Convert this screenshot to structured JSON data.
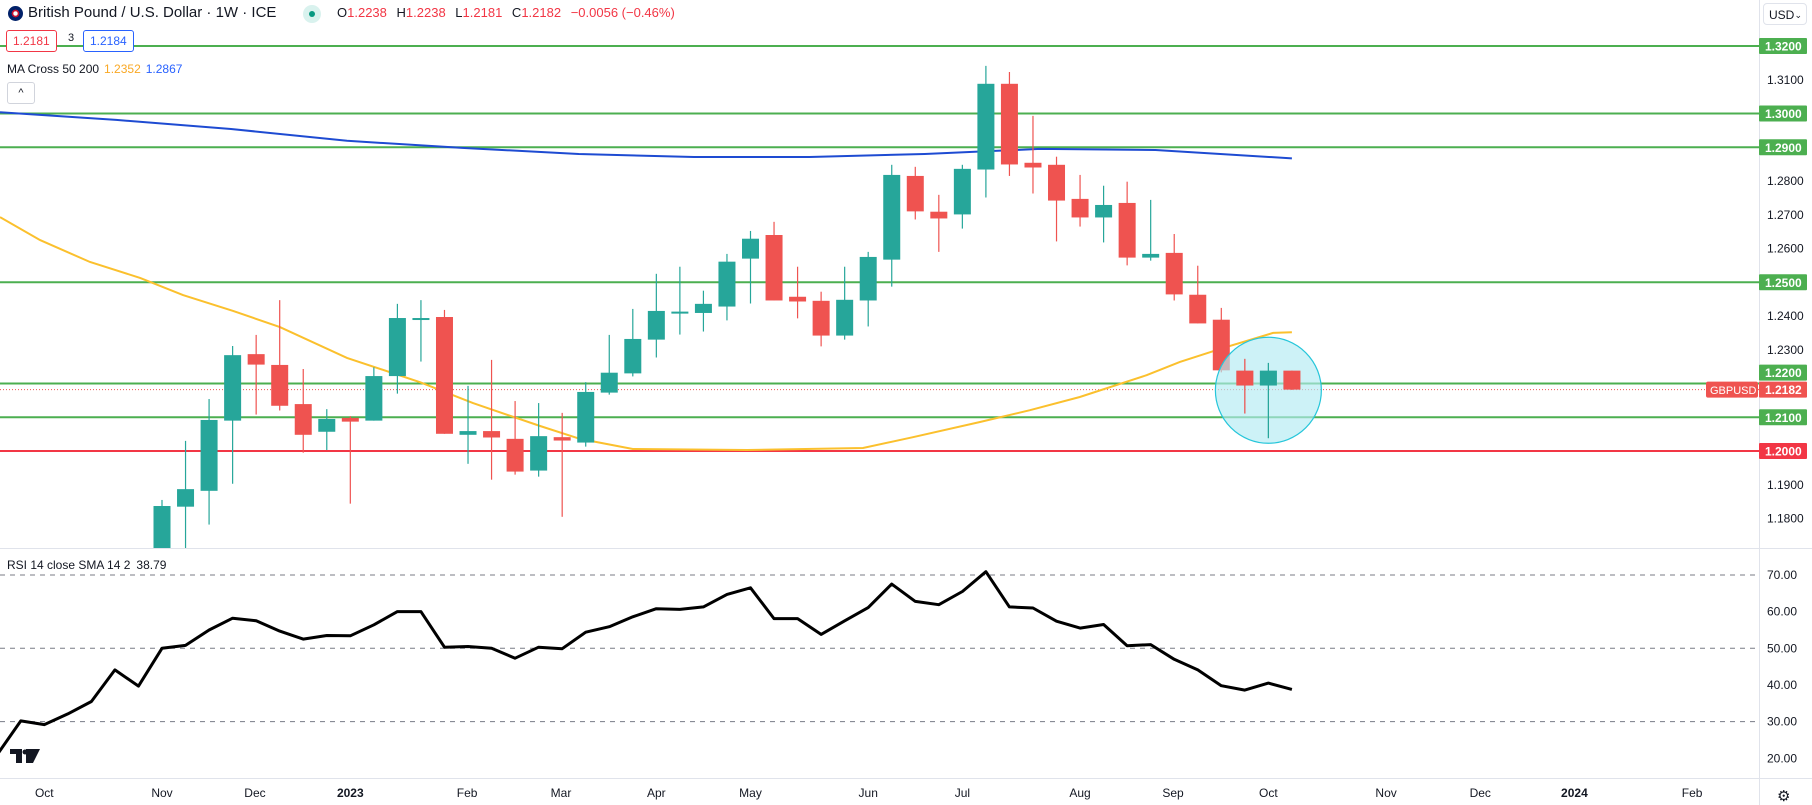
{
  "header": {
    "title": "British Pound / U.S. Dollar · 1W · ICE",
    "o_label": "O",
    "o": "1.2238",
    "h_label": "H",
    "h": "1.2238",
    "l_label": "L",
    "l": "1.2181",
    "c_label": "C",
    "c": "1.2182",
    "change": "−0.0056 (−0.46%)",
    "sell_price": "1.2181",
    "spread": "3",
    "buy_price": "1.2184",
    "collapse_icon": "^"
  },
  "indicators": {
    "ma_label": "MA Cross 50 200",
    "ma50_value": "1.2352",
    "ma200_value": "1.2867",
    "rsi_label": "RSI 14 close SMA 14 2",
    "rsi_value": "38.79"
  },
  "currency_button": {
    "label": "USD",
    "chevron": "⌄"
  },
  "settings_icon": "⚙",
  "symbol_tag": "GBPUSD",
  "current_price": {
    "value": 1.2182,
    "label": "1.2182"
  },
  "colors": {
    "up": "#26a69a",
    "down": "#ef5350",
    "level_green": "#4caf50",
    "level_red": "#f23645",
    "ma50": "#fbc02d",
    "ma200": "#1e4bd2",
    "rsi": "#000000",
    "circle_fill": "#b2ebf2",
    "circle_stroke": "#26c6da"
  },
  "price_axis": {
    "ticks": [
      {
        "value": 1.31,
        "label": "1.3100"
      },
      {
        "value": 1.28,
        "label": "1.2800"
      },
      {
        "value": 1.27,
        "label": "1.2700"
      },
      {
        "value": 1.26,
        "label": "1.2600"
      },
      {
        "value": 1.24,
        "label": "1.2400"
      },
      {
        "value": 1.23,
        "label": "1.2300"
      },
      {
        "value": 1.19,
        "label": "1.1900"
      },
      {
        "value": 1.18,
        "label": "1.1800"
      }
    ],
    "levels": [
      {
        "value": 1.32,
        "label": "1.3200",
        "color": "#4caf50"
      },
      {
        "value": 1.3,
        "label": "1.3000",
        "color": "#4caf50"
      },
      {
        "value": 1.29,
        "label": "1.2900",
        "color": "#4caf50"
      },
      {
        "value": 1.25,
        "label": "1.2500",
        "color": "#4caf50"
      },
      {
        "value": 1.22,
        "label": "1.2200",
        "color": "#4caf50"
      },
      {
        "value": 1.21,
        "label": "1.2100",
        "color": "#4caf50"
      },
      {
        "value": 1.2,
        "label": "1.2000",
        "color": "#f23645"
      }
    ]
  },
  "rsi_axis": {
    "ticks": [
      {
        "value": 70,
        "label": "70.00",
        "dashed": true
      },
      {
        "value": 60,
        "label": "60.00",
        "dashed": false
      },
      {
        "value": 50,
        "label": "50.00",
        "dashed": true
      },
      {
        "value": 40,
        "label": "40.00",
        "dashed": false
      },
      {
        "value": 30,
        "label": "30.00",
        "dashed": true
      },
      {
        "value": 20,
        "label": "20.00",
        "dashed": false
      }
    ]
  },
  "time_axis": [
    {
      "week": -5,
      "label": "Oct",
      "bold": false
    },
    {
      "week": 0,
      "label": "Nov",
      "bold": false
    },
    {
      "week": 3.95,
      "label": "Dec",
      "bold": false
    },
    {
      "week": 8,
      "label": "2023",
      "bold": true
    },
    {
      "week": 12.96,
      "label": "Feb",
      "bold": false
    },
    {
      "week": 16.95,
      "label": "Mar",
      "bold": false
    },
    {
      "week": 21,
      "label": "Apr",
      "bold": false
    },
    {
      "week": 25,
      "label": "May",
      "bold": false
    },
    {
      "week": 30,
      "label": "Jun",
      "bold": false
    },
    {
      "week": 34,
      "label": "Jul",
      "bold": false
    },
    {
      "week": 39,
      "label": "Aug",
      "bold": false
    },
    {
      "week": 42.95,
      "label": "Sep",
      "bold": false
    },
    {
      "week": 47,
      "label": "Oct",
      "bold": false
    },
    {
      "week": 52,
      "label": "Nov",
      "bold": false
    },
    {
      "week": 56,
      "label": "Dec",
      "bold": false
    },
    {
      "week": 60,
      "label": "2024",
      "bold": true
    },
    {
      "week": 65,
      "label": "Feb",
      "bold": false
    }
  ],
  "chart_data": {
    "type": "candlestick",
    "title": "British Pound / U.S. Dollar · 1W · ICE",
    "ohlc_fields": [
      "open",
      "high",
      "low",
      "close"
    ],
    "candles": [
      [
        1.17,
        1.1855,
        1.165,
        1.1837
      ],
      [
        1.1835,
        1.203,
        1.171,
        1.1887
      ],
      [
        1.1882,
        1.2154,
        1.1782,
        1.2092
      ],
      [
        1.209,
        1.2311,
        1.1903,
        1.2284
      ],
      [
        1.2287,
        1.2344,
        1.2108,
        1.2256
      ],
      [
        1.2255,
        1.2447,
        1.212,
        1.2134
      ],
      [
        1.2139,
        1.2243,
        1.1995,
        1.2048
      ],
      [
        1.2057,
        1.2124,
        1.2003,
        1.2095
      ],
      [
        1.2098,
        1.2103,
        1.1844,
        1.2087
      ],
      [
        1.209,
        1.2248,
        1.209,
        1.2222
      ],
      [
        1.2222,
        1.2436,
        1.217,
        1.2394
      ],
      [
        1.239,
        1.2447,
        1.2265,
        1.2394
      ],
      [
        1.2397,
        1.2418,
        1.2051,
        1.2051
      ],
      [
        1.2048,
        1.2193,
        1.1962,
        1.2059
      ],
      [
        1.2059,
        1.227,
        1.1915,
        1.204
      ],
      [
        1.2036,
        1.2148,
        1.193,
        1.1939
      ],
      [
        1.1942,
        1.2142,
        1.1924,
        1.2044
      ],
      [
        1.2041,
        1.2113,
        1.1805,
        1.2031
      ],
      [
        1.2025,
        1.2204,
        1.2013,
        1.2175
      ],
      [
        1.2173,
        1.2344,
        1.2167,
        1.2232
      ],
      [
        1.223,
        1.2421,
        1.2221,
        1.2332
      ],
      [
        1.233,
        1.2525,
        1.2277,
        1.2415
      ],
      [
        1.2411,
        1.2546,
        1.2345,
        1.2413
      ],
      [
        1.2409,
        1.2475,
        1.2354,
        1.2436
      ],
      [
        1.2428,
        1.2584,
        1.2387,
        1.2561
      ],
      [
        1.257,
        1.2652,
        1.2437,
        1.2629
      ],
      [
        1.264,
        1.2679,
        1.2446,
        1.2446
      ],
      [
        1.2457,
        1.2546,
        1.2393,
        1.2443
      ],
      [
        1.2445,
        1.2472,
        1.231,
        1.2342
      ],
      [
        1.2342,
        1.2546,
        1.233,
        1.2448
      ],
      [
        1.2446,
        1.259,
        1.2369,
        1.2575
      ],
      [
        1.2567,
        1.2848,
        1.2487,
        1.2818
      ],
      [
        1.2815,
        1.2842,
        1.2686,
        1.271
      ],
      [
        1.2709,
        1.2759,
        1.259,
        1.2689
      ],
      [
        1.2701,
        1.2848,
        1.2659,
        1.2836
      ],
      [
        1.2834,
        1.3141,
        1.2751,
        1.3088
      ],
      [
        1.3088,
        1.3123,
        1.2815,
        1.2849
      ],
      [
        1.2854,
        1.2993,
        1.2763,
        1.284
      ],
      [
        1.2848,
        1.2872,
        1.2621,
        1.2742
      ],
      [
        1.2747,
        1.2818,
        1.2665,
        1.2692
      ],
      [
        1.2692,
        1.2786,
        1.2618,
        1.2729
      ],
      [
        1.2735,
        1.2798,
        1.255,
        1.2573
      ],
      [
        1.2573,
        1.2744,
        1.2564,
        1.2584
      ],
      [
        1.2587,
        1.2643,
        1.2446,
        1.2464
      ],
      [
        1.2463,
        1.2549,
        1.2378,
        1.2378
      ],
      [
        1.2389,
        1.2424,
        1.2233,
        1.2239
      ],
      [
        1.2238,
        1.2273,
        1.2111,
        1.2194
      ],
      [
        1.2194,
        1.2261,
        1.2038,
        1.2238
      ],
      [
        1.2238,
        1.2238,
        1.2181,
        1.2182
      ]
    ],
    "ma50": [
      [
        -6.88,
        1.2693
      ],
      [
        -5.18,
        1.2625
      ],
      [
        -3.06,
        1.256
      ],
      [
        -0.93,
        1.2513
      ],
      [
        0.89,
        1.2462
      ],
      [
        3.02,
        1.2415
      ],
      [
        5.01,
        1.2367
      ],
      [
        7.86,
        1.2276
      ],
      [
        10.96,
        1.2204
      ],
      [
        13.21,
        1.2142
      ],
      [
        16.06,
        1.2074
      ],
      [
        17.76,
        1.2036
      ],
      [
        20.0,
        1.2006
      ],
      [
        24.85,
        1.2003
      ],
      [
        29.78,
        1.2009
      ],
      [
        31.9,
        1.2041
      ],
      [
        34.75,
        1.2086
      ],
      [
        36.87,
        1.2121
      ],
      [
        38.99,
        1.216
      ],
      [
        41.84,
        1.2225
      ],
      [
        43.24,
        1.2264
      ],
      [
        45.07,
        1.2305
      ],
      [
        47.2,
        1.235
      ],
      [
        48,
        1.2352
      ]
    ],
    "ma200": [
      [
        -6.88,
        1.3004
      ],
      [
        -1.95,
        1.2981
      ],
      [
        2.93,
        1.2954
      ],
      [
        7.86,
        1.2919
      ],
      [
        12.75,
        1.2898
      ],
      [
        17.7,
        1.288
      ],
      [
        22.6,
        1.2871
      ],
      [
        27.5,
        1.2871
      ],
      [
        32.4,
        1.288
      ],
      [
        37.3,
        1.2895
      ],
      [
        42.2,
        1.2892
      ],
      [
        48,
        1.2867
      ]
    ],
    "rsi": {
      "start_week": -7,
      "values": [
        21,
        30.2,
        29.2,
        32.1,
        35.5,
        44.1,
        39.7,
        50.0,
        50.8,
        55.0,
        58.2,
        57.5,
        54.7,
        52.5,
        53.5,
        53.4,
        56.4,
        60.0,
        60.0,
        50.3,
        50.5,
        50.0,
        47.3,
        50.3,
        49.9,
        54.4,
        55.9,
        58.6,
        60.8,
        60.6,
        61.3,
        64.7,
        66.5,
        58.1,
        58.1,
        53.8,
        57.5,
        61.1,
        67.5,
        62.8,
        61.9,
        65.5,
        70.9,
        61.3,
        61.0,
        57.4,
        55.5,
        56.5,
        50.7,
        51.0,
        47.0,
        44.1,
        39.8,
        38.6,
        40.5,
        38.79
      ]
    },
    "highlight_circle": {
      "center_week": 47,
      "center_price": 1.218,
      "radius_price": 0.0157
    },
    "ylim": [
      1.175,
      1.335
    ],
    "rsi_ylim": [
      15,
      75
    ]
  }
}
